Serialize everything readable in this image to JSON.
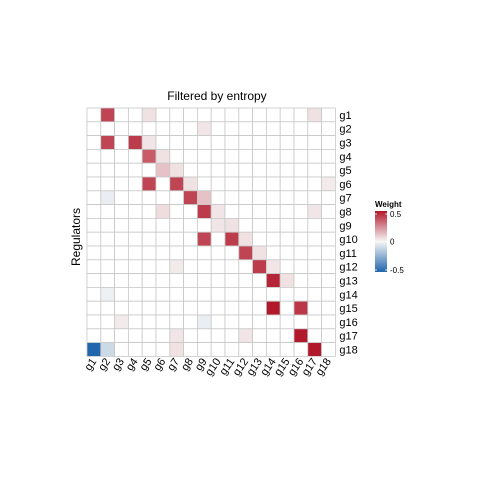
{
  "chart_data": {
    "type": "heatmap",
    "title": "Filtered by entropy",
    "ylabel": "Regulators",
    "xlabel": "",
    "x_categories": [
      "g1",
      "g2",
      "g3",
      "g4",
      "g5",
      "g6",
      "g7",
      "g8",
      "g9",
      "g10",
      "g11",
      "g12",
      "g13",
      "g14",
      "g15",
      "g16",
      "g17",
      "g18"
    ],
    "y_categories": [
      "g1",
      "g2",
      "g3",
      "g4",
      "g5",
      "g6",
      "g7",
      "g8",
      "g9",
      "g10",
      "g11",
      "g12",
      "g13",
      "g14",
      "g15",
      "g16",
      "g17",
      "g18"
    ],
    "values": [
      [
        0,
        0.4,
        0,
        0,
        0.05,
        0,
        0,
        0,
        0,
        0,
        0,
        0,
        0,
        0,
        0,
        0,
        0.05,
        0
      ],
      [
        0,
        0,
        0,
        0,
        0,
        0,
        0,
        0,
        0.04,
        0,
        0,
        0,
        0,
        0,
        0,
        0,
        0,
        0
      ],
      [
        0,
        0.4,
        0,
        0.42,
        0.04,
        0,
        0,
        0,
        0,
        0,
        0,
        0,
        0,
        0,
        0,
        0,
        0,
        0
      ],
      [
        0,
        0,
        0,
        0,
        0.35,
        0.05,
        0,
        0,
        0,
        0,
        0,
        0,
        0,
        0,
        0,
        0,
        0,
        0
      ],
      [
        0,
        0,
        0,
        0,
        0,
        0.12,
        0.05,
        0,
        0,
        0,
        0,
        0,
        0,
        0,
        0,
        0,
        0,
        0
      ],
      [
        0,
        0,
        0,
        0,
        0.4,
        0,
        0.4,
        0.05,
        0,
        0,
        0,
        0,
        0,
        0,
        0,
        0,
        0,
        0.03
      ],
      [
        0,
        -0.03,
        0,
        0,
        0,
        0,
        0,
        0.4,
        0.12,
        0,
        0,
        0,
        0,
        0,
        0,
        0,
        0,
        0
      ],
      [
        0,
        0,
        0,
        0,
        0,
        0.06,
        0,
        0,
        0.42,
        0.04,
        0,
        0,
        0,
        0,
        0,
        0,
        0.04,
        0
      ],
      [
        0,
        0,
        0,
        0,
        0,
        0,
        0,
        0,
        0,
        0.04,
        0.05,
        0,
        0,
        0,
        0,
        0,
        0,
        0
      ],
      [
        0,
        0,
        0,
        0,
        0,
        0,
        0,
        0,
        0.4,
        0,
        0.42,
        0.05,
        0,
        0,
        0,
        0,
        0,
        0
      ],
      [
        0,
        0,
        0,
        0,
        0,
        0,
        0,
        0,
        0,
        0,
        0,
        0.4,
        0.05,
        0,
        0,
        0,
        0,
        0
      ],
      [
        0,
        0,
        0,
        0,
        0,
        0,
        0.03,
        0,
        0,
        0,
        0,
        0,
        0.42,
        0.04,
        0,
        0,
        0,
        0
      ],
      [
        0,
        0,
        0,
        0,
        0,
        0,
        0,
        0,
        0,
        0,
        0,
        0,
        0,
        0.47,
        0.05,
        0,
        0,
        0
      ],
      [
        0,
        -0.02,
        0,
        0,
        0,
        0,
        0,
        0,
        0,
        0,
        0,
        0,
        0,
        0,
        0,
        0,
        0,
        0
      ],
      [
        0,
        0,
        0,
        0,
        0,
        0,
        0,
        0,
        0,
        0,
        0,
        0,
        0,
        0.5,
        0,
        0.43,
        0,
        0
      ],
      [
        0,
        0,
        0.03,
        0,
        0,
        0,
        0,
        0,
        -0.03,
        0,
        0,
        0,
        0,
        0,
        0,
        0,
        0,
        0
      ],
      [
        0,
        0,
        0,
        0,
        0,
        0,
        0.04,
        0,
        0,
        0,
        0,
        0.04,
        0,
        0,
        0,
        0.5,
        0,
        0
      ],
      [
        -0.5,
        -0.1,
        0,
        0,
        0,
        0,
        0.05,
        0,
        0,
        0,
        0,
        0,
        0,
        0,
        0,
        0,
        0.5,
        0
      ]
    ],
    "color_scale": {
      "title": "Weight",
      "low": "#2166ac",
      "mid": "#f7f7f7",
      "high": "#b2182b",
      "limits": [
        -0.5,
        0.5
      ],
      "tick_labels": [
        "0.5",
        "0",
        "-0.5"
      ],
      "tick_values": [
        0.5,
        0,
        -0.5
      ]
    },
    "grid": true,
    "legend": "right"
  }
}
